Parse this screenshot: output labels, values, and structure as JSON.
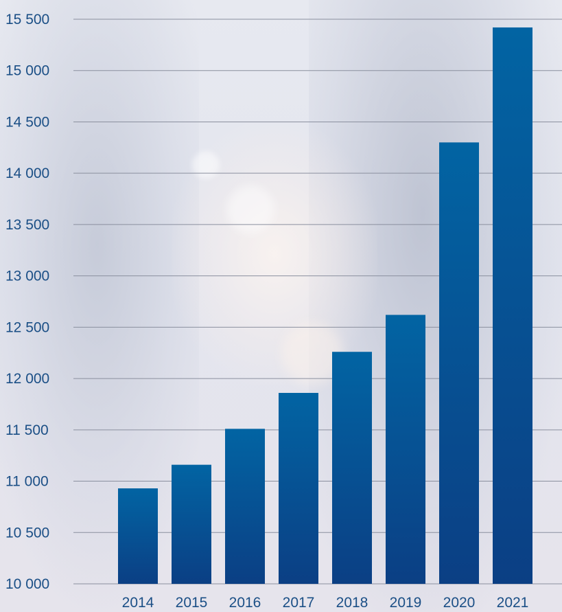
{
  "chart_data": {
    "type": "bar",
    "title": "",
    "xlabel": "",
    "ylabel": "",
    "categories": [
      "2014",
      "2015",
      "2016",
      "2017",
      "2018",
      "2019",
      "2020",
      "2021"
    ],
    "values": [
      10930,
      11160,
      11510,
      11860,
      12260,
      12620,
      14300,
      15420
    ],
    "ylim": [
      10000,
      15500
    ],
    "yticks": [
      10000,
      10500,
      11000,
      11500,
      12000,
      12500,
      13000,
      13500,
      14000,
      14500,
      15000,
      15500
    ],
    "ytick_labels": [
      "10 000",
      "10 500",
      "11 000",
      "11 500",
      "12 000",
      "12 500",
      "13 000",
      "13 500",
      "14 000",
      "14 500",
      "15 000",
      "15 500"
    ],
    "grid": true,
    "legend": "none",
    "colors": {
      "bar_top": "#0264a3",
      "bar_bottom": "#0b3f84",
      "label": "#1b4f86",
      "grid": "#8a8f9e"
    }
  }
}
